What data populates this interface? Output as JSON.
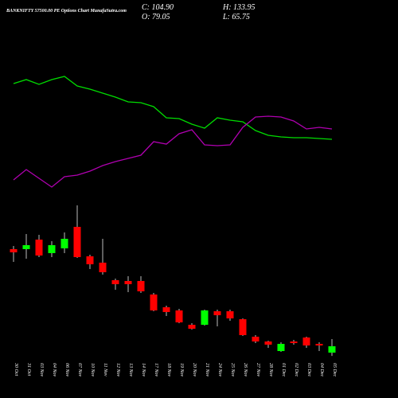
{
  "chart_data": {
    "type": "candlestick",
    "title": "BANKNIFTY 57500.00 PE Options Chart MunafaSutra.com",
    "header": [
      "C: 104.90",
      "O: 79.05",
      "H: 133.95",
      "L: 65.75"
    ],
    "categories": [
      "30 Oct",
      "31 Oct",
      "03 Nov",
      "04 Nov",
      "06 Nov",
      "07 Nov",
      "10 Nov",
      "11 Nov",
      "12 Nov",
      "13 Nov",
      "14 Nov",
      "17 Nov",
      "18 Nov",
      "19 Nov",
      "20 Nov",
      "21 Nov",
      "24 Nov",
      "25 Nov",
      "26 Nov",
      "27 Nov",
      "28 Nov",
      "01 Dec",
      "02 Dec",
      "03 Dec",
      "04 Dec",
      "05 Dec"
    ],
    "open": [
      499.0,
      499.0,
      537.7,
      482.8,
      502.2,
      589.4,
      469.9,
      444.1,
      373.0,
      369.8,
      369.8,
      314.9,
      263.2,
      250.3,
      192.1,
      192.1,
      247.0,
      247.0,
      214.7,
      143.7,
      124.3,
      85.5,
      124.3,
      140.4,
      114.6,
      79.05
    ],
    "high": [
      511.9,
      560.3,
      557.1,
      531.3,
      566.8,
      676.6,
      476.4,
      540.9,
      379.4,
      389.1,
      389.1,
      321.3,
      269.6,
      256.7,
      198.6,
      253.5,
      253.5,
      253.5,
      218.0,
      150.1,
      127.5,
      121.1,
      130.7,
      143.7,
      121.1,
      133.95
    ],
    "low": [
      447.3,
      460.2,
      466.7,
      466.7,
      482.8,
      463.4,
      418.2,
      395.6,
      334.2,
      324.5,
      321.3,
      247.0,
      227.6,
      198.6,
      172.7,
      188.9,
      185.7,
      208.3,
      146.9,
      117.8,
      98.4,
      82.3,
      111.4,
      98.4,
      85.5,
      65.75
    ],
    "close": [
      486.0,
      515.1,
      473.1,
      515.1,
      540.9,
      466.7,
      437.6,
      405.3,
      356.8,
      356.8,
      327.8,
      250.3,
      243.8,
      201.8,
      176.0,
      250.3,
      230.9,
      218.0,
      150.1,
      124.3,
      111.4,
      114.6,
      117.8,
      108.1,
      108.1,
      104.9
    ],
    "up_color": "#00ff00",
    "down_color": "#ff0000",
    "series": [
      {
        "color": "#00dd00",
        "values": [
          1170.8,
          1187.0,
          1167.6,
          1187.0,
          1199.9,
          1161.1,
          1148.2,
          1132.0,
          1115.9,
          1096.5,
          1093.3,
          1077.1,
          1031.9,
          1028.7,
          1006.1,
          989.9,
          1031.9,
          1022.2,
          1015.8,
          980.2,
          960.9,
          954.4,
          951.2,
          951.2,
          947.9,
          944.7
        ]
      },
      {
        "color": "#b000b0",
        "values": [
          780.0,
          821.9,
          786.4,
          750.9,
          792.9,
          799.4,
          815.5,
          838.1,
          854.3,
          867.2,
          880.1,
          935.0,
          925.3,
          967.3,
          983.5,
          922.1,
          918.9,
          922.1,
          993.2,
          1035.1,
          1038.4,
          1035.1,
          1019.0,
          986.7,
          993.2,
          986.7
        ]
      }
    ],
    "ylim": [
      24.15,
      1509.95
    ]
  }
}
